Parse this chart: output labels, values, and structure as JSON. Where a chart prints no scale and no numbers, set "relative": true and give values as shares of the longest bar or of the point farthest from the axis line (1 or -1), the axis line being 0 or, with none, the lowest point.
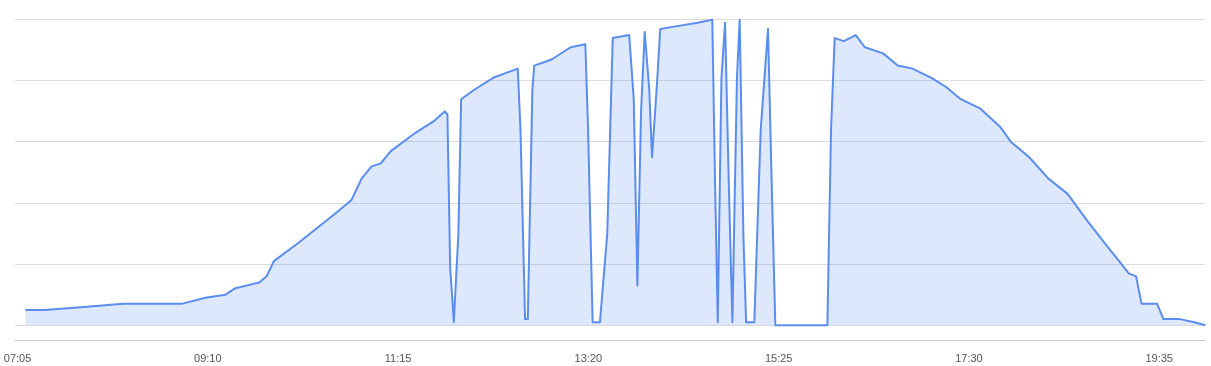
{
  "chart_data": {
    "type": "area",
    "relative": true,
    "grid": "y",
    "xlim": [
      7.05,
      20.09
    ],
    "xticks": [
      {
        "value": 7.0833,
        "label": "07:05"
      },
      {
        "value": 9.1667,
        "label": "09:10"
      },
      {
        "value": 11.25,
        "label": "11:15"
      },
      {
        "value": 13.3333,
        "label": "13:20"
      },
      {
        "value": 15.4167,
        "label": "15:25"
      },
      {
        "value": 17.5,
        "label": "17:30"
      },
      {
        "value": 19.5833,
        "label": "19:35"
      }
    ],
    "series": [
      {
        "color": "#5a8dee",
        "x": [
          7.17,
          7.38,
          7.81,
          8.24,
          8.88,
          9.14,
          9.36,
          9.46,
          9.73,
          9.81,
          9.89,
          10.16,
          10.37,
          10.58,
          10.74,
          10.85,
          10.96,
          11.06,
          11.17,
          11.44,
          11.65,
          11.76,
          11.79,
          11.82,
          11.86,
          11.91,
          11.94,
          12.08,
          12.29,
          12.56,
          12.59,
          12.64,
          12.67,
          12.72,
          12.74,
          12.93,
          13.14,
          13.3,
          13.33,
          13.38,
          13.46,
          13.54,
          13.6,
          13.78,
          13.83,
          13.87,
          13.91,
          13.95,
          14.0,
          14.03,
          14.08,
          14.12,
          14.32,
          14.53,
          14.69,
          14.72,
          14.75,
          14.79,
          14.83,
          14.87,
          14.91,
          14.96,
          14.99,
          15.03,
          15.06,
          15.15,
          15.22,
          15.3,
          15.34,
          15.38,
          15.95,
          15.99,
          16.03,
          16.13,
          16.26,
          16.36,
          16.56,
          16.72,
          16.88,
          17.09,
          17.25,
          17.41,
          17.62,
          17.84,
          17.96,
          18.16,
          18.37,
          18.58,
          18.8,
          19.01,
          19.17,
          19.25,
          19.33,
          19.39,
          19.49,
          19.56,
          19.63,
          19.81,
          19.97,
          20.09
        ],
        "values": [
          0.05,
          0.05,
          0.06,
          0.07,
          0.07,
          0.09,
          0.1,
          0.12,
          0.14,
          0.16,
          0.21,
          0.27,
          0.32,
          0.37,
          0.41,
          0.48,
          0.52,
          0.53,
          0.57,
          0.63,
          0.67,
          0.7,
          0.69,
          0.19,
          0.01,
          0.3,
          0.74,
          0.77,
          0.81,
          0.84,
          0.64,
          0.02,
          0.02,
          0.77,
          0.85,
          0.87,
          0.91,
          0.92,
          0.64,
          0.01,
          0.01,
          0.3,
          0.94,
          0.95,
          0.74,
          0.13,
          0.7,
          0.96,
          0.77,
          0.55,
          0.77,
          0.97,
          0.98,
          0.99,
          1.0,
          0.47,
          0.01,
          0.81,
          0.99,
          0.47,
          0.01,
          0.81,
          1.0,
          0.3,
          0.01,
          0.01,
          0.64,
          0.97,
          0.47,
          0,
          0,
          0.64,
          0.94,
          0.93,
          0.95,
          0.91,
          0.89,
          0.85,
          0.84,
          0.81,
          0.78,
          0.74,
          0.71,
          0.65,
          0.6,
          0.55,
          0.48,
          0.43,
          0.34,
          0.26,
          0.2,
          0.17,
          0.16,
          0.07,
          0.07,
          0.07,
          0.02,
          0.02,
          0.01,
          0.0
        ]
      }
    ]
  }
}
